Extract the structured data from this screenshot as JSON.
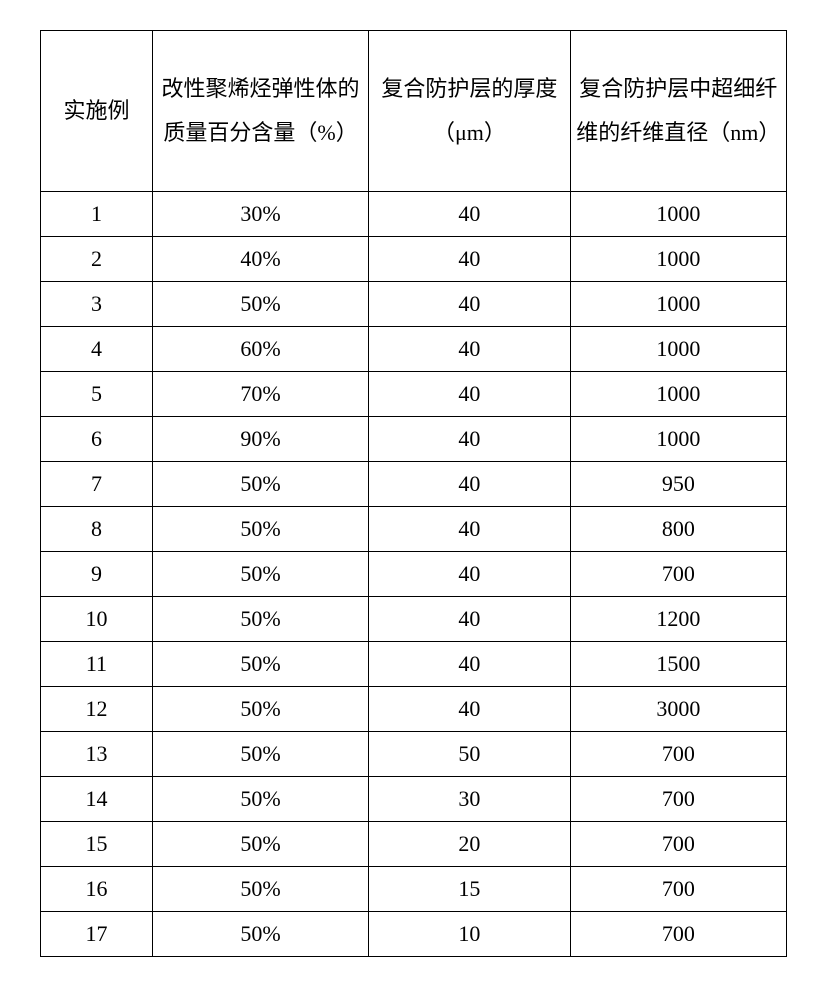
{
  "table": {
    "columns": [
      "实施例",
      "改性聚烯烃弹性体的质量百分含量（%）",
      "复合防护层的厚度（μm）",
      "复合防护层中超细纤维的纤维直径（nm）"
    ],
    "rows": [
      [
        "1",
        "30%",
        "40",
        "1000"
      ],
      [
        "2",
        "40%",
        "40",
        "1000"
      ],
      [
        "3",
        "50%",
        "40",
        "1000"
      ],
      [
        "4",
        "60%",
        "40",
        "1000"
      ],
      [
        "5",
        "70%",
        "40",
        "1000"
      ],
      [
        "6",
        "90%",
        "40",
        "1000"
      ],
      [
        "7",
        "50%",
        "40",
        "950"
      ],
      [
        "8",
        "50%",
        "40",
        "800"
      ],
      [
        "9",
        "50%",
        "40",
        "700"
      ],
      [
        "10",
        "50%",
        "40",
        "1200"
      ],
      [
        "11",
        "50%",
        "40",
        "1500"
      ],
      [
        "12",
        "50%",
        "40",
        "3000"
      ],
      [
        "13",
        "50%",
        "50",
        "700"
      ],
      [
        "14",
        "50%",
        "30",
        "700"
      ],
      [
        "15",
        "50%",
        "20",
        "700"
      ],
      [
        "16",
        "50%",
        "15",
        "700"
      ],
      [
        "17",
        "50%",
        "10",
        "700"
      ]
    ],
    "border_color": "#000000",
    "background_color": "#ffffff",
    "font_size": 22,
    "header_line_height": 2
  }
}
